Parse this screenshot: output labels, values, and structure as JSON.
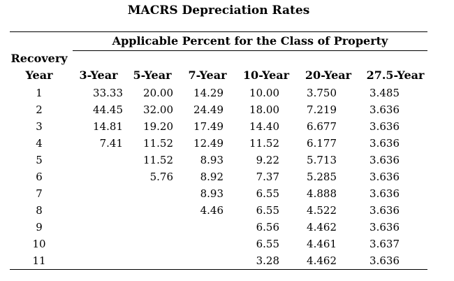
{
  "title": "MACRS Depreciation Rates",
  "subheader": "Applicable Percent for the Class of Property",
  "row_header": [
    "Recovery",
    "Year"
  ],
  "columns": [
    "3-Year",
    "5-Year",
    "7-Year",
    "10-Year",
    "20-Year",
    "27.5-Year"
  ],
  "rows": [
    {
      "year": "1",
      "v3": "33.33",
      "v5": "20.00",
      "v7": "14.29",
      "v10": "10.00",
      "v20": "3.750",
      "v275": "3.485"
    },
    {
      "year": "2",
      "v3": "44.45",
      "v5": "32.00",
      "v7": "24.49",
      "v10": "18.00",
      "v20": "7.219",
      "v275": "3.636"
    },
    {
      "year": "3",
      "v3": "14.81",
      "v5": "19.20",
      "v7": "17.49",
      "v10": "14.40",
      "v20": "6.677",
      "v275": "3.636"
    },
    {
      "year": "4",
      "v3": "7.41",
      "v5": "11.52",
      "v7": "12.49",
      "v10": "11.52",
      "v20": "6.177",
      "v275": "3.636"
    },
    {
      "year": "5",
      "v3": "",
      "v5": "11.52",
      "v7": "8.93",
      "v10": "9.22",
      "v20": "5.713",
      "v275": "3.636"
    },
    {
      "year": "6",
      "v3": "",
      "v5": "5.76",
      "v7": "8.92",
      "v10": "7.37",
      "v20": "5.285",
      "v275": "3.636"
    },
    {
      "year": "7",
      "v3": "",
      "v5": "",
      "v7": "8.93",
      "v10": "6.55",
      "v20": "4.888",
      "v275": "3.636"
    },
    {
      "year": "8",
      "v3": "",
      "v5": "",
      "v7": "4.46",
      "v10": "6.55",
      "v20": "4.522",
      "v275": "3.636"
    },
    {
      "year": "9",
      "v3": "",
      "v5": "",
      "v7": "",
      "v10": "6.56",
      "v20": "4.462",
      "v275": "3.636"
    },
    {
      "year": "10",
      "v3": "",
      "v5": "",
      "v7": "",
      "v10": "6.55",
      "v20": "4.461",
      "v275": "3.637"
    },
    {
      "year": "11",
      "v3": "",
      "v5": "",
      "v7": "",
      "v10": "3.28",
      "v20": "4.462",
      "v275": "3.636"
    }
  ]
}
